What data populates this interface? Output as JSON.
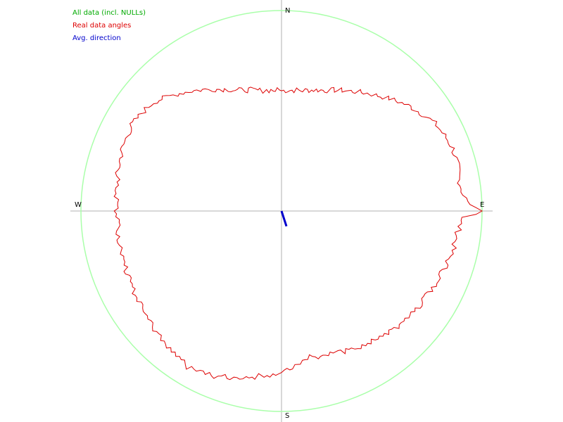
{
  "chart_data": {
    "type": "line",
    "coordinate_system": "polar",
    "directions": {
      "north": "N",
      "east": "E",
      "south": "S",
      "west": "W"
    },
    "radial_max": 1.0,
    "legend": [
      {
        "label": "All data (incl. NULLs)",
        "color": "#00aa00"
      },
      {
        "label": "Real data angles",
        "color": "#dd0000"
      },
      {
        "label": "Avg. direction",
        "color": "#0000cc"
      }
    ],
    "series": [
      {
        "name": "All data (incl. NULLs)",
        "color": "#aaffaa",
        "angles_deg": [
          0,
          90,
          180,
          270
        ],
        "radii": [
          1.0,
          1.0,
          1.0,
          1.0
        ]
      },
      {
        "name": "Real data angles",
        "color": "#dd0000",
        "angles_deg": [
          0,
          10,
          20,
          30,
          40,
          50,
          60,
          70,
          80,
          85,
          88,
          89,
          90,
          91,
          92,
          95,
          100,
          110,
          120,
          130,
          140,
          150,
          160,
          170,
          180,
          190,
          200,
          210,
          220,
          230,
          240,
          250,
          260,
          270,
          280,
          290,
          300,
          310,
          320,
          330,
          340,
          350
        ],
        "radii": [
          0.6,
          0.61,
          0.64,
          0.69,
          0.75,
          0.82,
          0.88,
          0.91,
          0.9,
          0.91,
          0.94,
          0.97,
          1.0,
          0.97,
          0.9,
          0.89,
          0.88,
          0.86,
          0.84,
          0.83,
          0.81,
          0.78,
          0.76,
          0.74,
          0.8,
          0.84,
          0.88,
          0.91,
          0.88,
          0.86,
          0.84,
          0.83,
          0.82,
          0.82,
          0.83,
          0.85,
          0.86,
          0.84,
          0.77,
          0.7,
          0.64,
          0.61
        ]
      },
      {
        "name": "Avg. direction",
        "color": "#0000cc",
        "angle_deg": 162,
        "radius": 0.08
      }
    ]
  }
}
